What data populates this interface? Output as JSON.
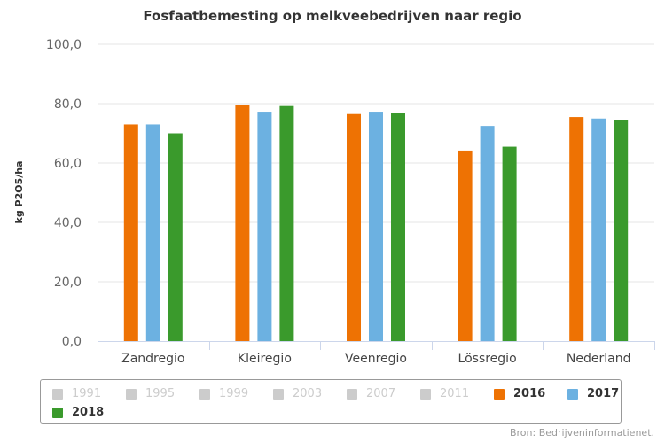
{
  "chart_data": {
    "type": "bar",
    "title": "Fosfaatbemesting op melkveebedrijven naar regio",
    "ylabel": "kg P2O5/ha",
    "xlabel": "",
    "ylim": [
      0,
      100
    ],
    "yticks": [
      "0,0",
      "20,0",
      "40,0",
      "60,0",
      "80,0",
      "100,0"
    ],
    "ytick_values": [
      0,
      20,
      40,
      60,
      80,
      100
    ],
    "categories": [
      "Zandregio",
      "Kleiregio",
      "Veenregio",
      "Lössregio",
      "Nederland"
    ],
    "series": [
      {
        "name": "2016",
        "color": "#ee7203",
        "values": [
          73.0,
          79.5,
          76.5,
          64.2,
          75.5
        ]
      },
      {
        "name": "2017",
        "color": "#6cb1e1",
        "values": [
          73.0,
          77.3,
          77.3,
          72.5,
          75.0
        ]
      },
      {
        "name": "2018",
        "color": "#3a9a2c",
        "values": [
          70.0,
          79.2,
          77.0,
          65.5,
          74.5
        ]
      }
    ],
    "grid": true,
    "legend_position": "bottom"
  },
  "legend": {
    "items": [
      {
        "label": "1991",
        "visible": false
      },
      {
        "label": "1995",
        "visible": false
      },
      {
        "label": "1999",
        "visible": false
      },
      {
        "label": "2003",
        "visible": false
      },
      {
        "label": "2007",
        "visible": false
      },
      {
        "label": "2011",
        "visible": false
      },
      {
        "label": "2016",
        "visible": true,
        "color": "#ee7203"
      },
      {
        "label": "2017",
        "visible": true,
        "color": "#6cb1e1"
      },
      {
        "label": "2018",
        "visible": true,
        "color": "#3a9a2c"
      }
    ],
    "hidden_color": "#cccccc"
  },
  "source": "Bron: Bedrijveninformatienet."
}
